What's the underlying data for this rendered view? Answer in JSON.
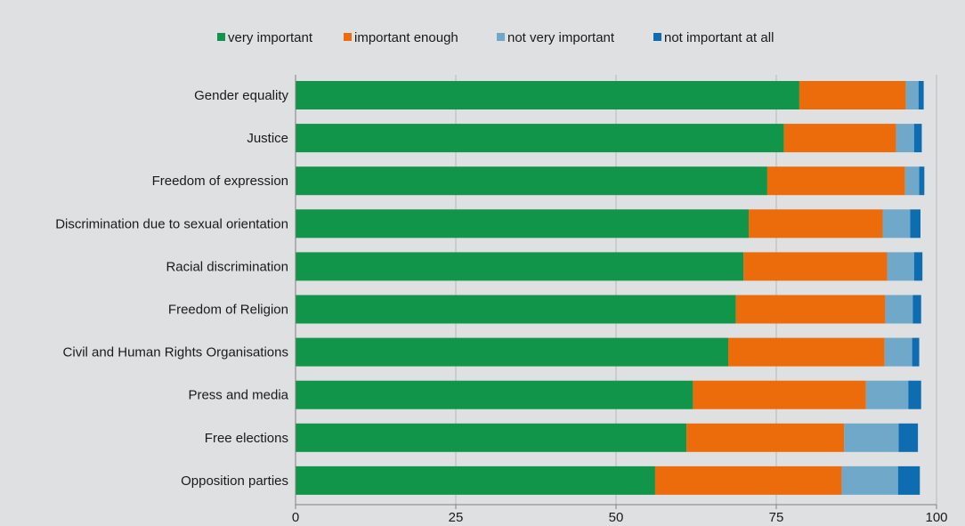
{
  "chart_data": {
    "type": "bar",
    "orientation": "horizontal",
    "stacked": true,
    "categories": [
      "Gender equality",
      "Justice",
      "Freedom of expression",
      "Discrimination due to sexual orientation",
      "Racial discrimination",
      "Freedom of Religion",
      "Civil and Human Rights Organisations",
      "Press and media",
      "Free elections",
      "Opposition parties"
    ],
    "series": [
      {
        "name": "very important",
        "color": "#10954a",
        "values": [
          78.6,
          76.2,
          73.6,
          70.7,
          69.9,
          68.7,
          67.5,
          62.0,
          61.0,
          56.1
        ]
      },
      {
        "name": "important enough",
        "color": "#ec6c0c",
        "values": [
          16.6,
          17.5,
          21.5,
          20.9,
          22.4,
          23.3,
          24.4,
          27.0,
          24.6,
          29.1
        ]
      },
      {
        "name": "not very important",
        "color": "#6fa8c8",
        "values": [
          2.0,
          2.8,
          2.2,
          4.3,
          4.2,
          4.3,
          4.3,
          6.6,
          8.5,
          8.8
        ]
      },
      {
        "name": "not important at all",
        "color": "#0e6cb0",
        "values": [
          0.8,
          1.2,
          0.8,
          1.6,
          1.3,
          1.3,
          1.1,
          2.0,
          3.0,
          3.4
        ]
      }
    ],
    "xlim": [
      0,
      100
    ],
    "xticks": [
      "0",
      "25",
      "50",
      "75",
      "100"
    ],
    "grid": true,
    "legend_position": "top"
  }
}
